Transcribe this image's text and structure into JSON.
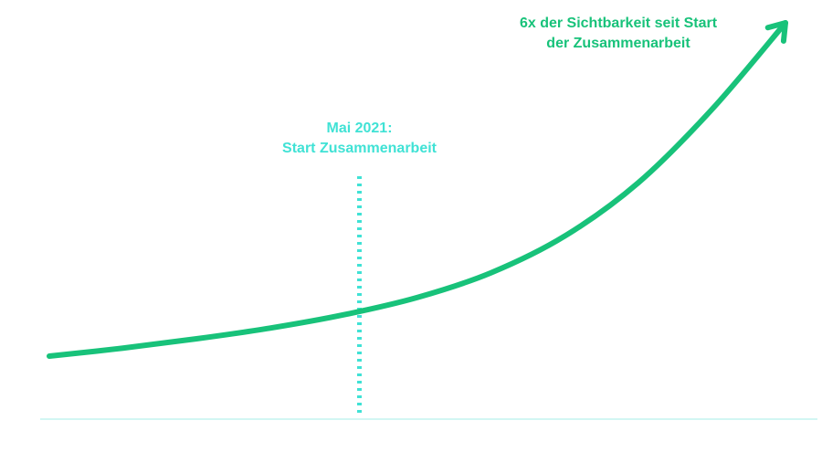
{
  "chart_data": {
    "type": "line",
    "title": "",
    "xlabel": "",
    "ylabel": "",
    "grid": false,
    "legend": "none",
    "series": [
      {
        "values_description_free": true,
        "points": [
          {
            "x": 0.0,
            "y": 1.0
          },
          {
            "x": 0.1,
            "y": 1.12
          },
          {
            "x": 0.2,
            "y": 1.26
          },
          {
            "x": 0.3,
            "y": 1.42
          },
          {
            "x": 0.4,
            "y": 1.62
          },
          {
            "x": 0.5,
            "y": 1.88
          },
          {
            "x": 0.6,
            "y": 2.25
          },
          {
            "x": 0.7,
            "y": 2.8
          },
          {
            "x": 0.8,
            "y": 3.6
          },
          {
            "x": 0.9,
            "y": 4.7
          },
          {
            "x": 1.0,
            "y": 6.0
          }
        ]
      }
    ],
    "marker": {
      "x": 0.42,
      "label_line1": "Mai 2021:",
      "label_line2": "Start Zusammenarbeit"
    },
    "end_annotation": {
      "line1": "6x der Sichtbarkeit seit Start",
      "line2": "der Zusammenarbeit"
    }
  },
  "colors": {
    "curve": "#18c27a",
    "marker": "#40e2d5",
    "baseline": "#c4f3ef",
    "end_text": "#18c27a",
    "marker_text": "#40e2d5"
  },
  "icons": {
    "arrowhead": "arrow-up-right-icon"
  }
}
